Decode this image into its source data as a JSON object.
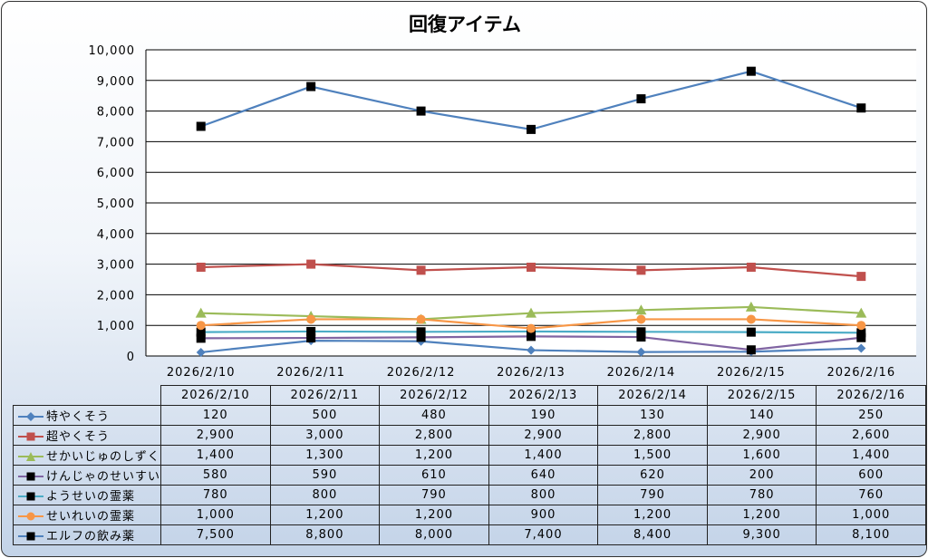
{
  "chart_data": {
    "type": "line",
    "title": "回復アイテム",
    "categories": [
      "2026/2/10",
      "2026/2/11",
      "2026/2/12",
      "2026/2/13",
      "2026/2/14",
      "2026/2/15",
      "2026/2/16"
    ],
    "ylim": [
      0,
      10000
    ],
    "yticks": [
      "0",
      "1,000",
      "2,000",
      "3,000",
      "4,000",
      "5,000",
      "6,000",
      "7,000",
      "8,000",
      "9,000",
      "10,000"
    ],
    "grid": true,
    "legend": "data-table",
    "series": [
      {
        "name": "特やくそう",
        "color": "#4f81bd",
        "marker": "diamond",
        "marker_color": "#4f81bd",
        "values": [
          120,
          500,
          480,
          190,
          130,
          140,
          250
        ],
        "labels": [
          "120",
          "500",
          "480",
          "190",
          "130",
          "140",
          "250"
        ]
      },
      {
        "name": "超やくそう",
        "color": "#c0504d",
        "marker": "square",
        "marker_color": "#c0504d",
        "values": [
          2900,
          3000,
          2800,
          2900,
          2800,
          2900,
          2600
        ],
        "labels": [
          "2,900",
          "3,000",
          "2,800",
          "2,900",
          "2,800",
          "2,900",
          "2,600"
        ]
      },
      {
        "name": "せかいじゅのしずく",
        "color": "#9bbb59",
        "marker": "triangle",
        "marker_color": "#9bbb59",
        "values": [
          1400,
          1300,
          1200,
          1400,
          1500,
          1600,
          1400
        ],
        "labels": [
          "1,400",
          "1,300",
          "1,200",
          "1,400",
          "1,500",
          "1,600",
          "1,400"
        ]
      },
      {
        "name": "けんじゃのせいすい",
        "color": "#8064a2",
        "marker": "square",
        "marker_color": "#000000",
        "values": [
          580,
          590,
          610,
          640,
          620,
          200,
          600
        ],
        "labels": [
          "580",
          "590",
          "610",
          "640",
          "620",
          "200",
          "600"
        ]
      },
      {
        "name": "ようせいの霊薬",
        "color": "#4bacc6",
        "marker": "square",
        "marker_color": "#000000",
        "values": [
          780,
          800,
          790,
          800,
          790,
          780,
          760
        ],
        "labels": [
          "780",
          "800",
          "790",
          "800",
          "790",
          "780",
          "760"
        ]
      },
      {
        "name": "せいれいの霊薬",
        "color": "#f79646",
        "marker": "circle",
        "marker_color": "#f79646",
        "values": [
          1000,
          1200,
          1200,
          900,
          1200,
          1200,
          1000
        ],
        "labels": [
          "1,000",
          "1,200",
          "1,200",
          "900",
          "1,200",
          "1,200",
          "1,000"
        ]
      },
      {
        "name": "エルフの飲み薬",
        "color": "#4f81bd",
        "marker": "square",
        "marker_color": "#000000",
        "values": [
          7500,
          8800,
          8000,
          7400,
          8400,
          9300,
          8100
        ],
        "labels": [
          "7,500",
          "8,800",
          "8,000",
          "7,400",
          "8,400",
          "9,300",
          "8,100"
        ]
      }
    ]
  }
}
